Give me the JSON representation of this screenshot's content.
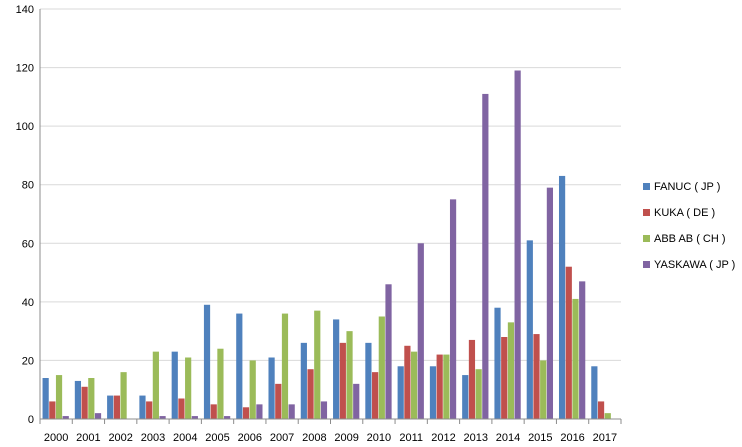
{
  "chart_data": {
    "type": "bar",
    "title": "",
    "xlabel": "",
    "ylabel": "",
    "ylim": [
      0,
      140
    ],
    "yticks": [
      0,
      20,
      40,
      60,
      80,
      100,
      120,
      140
    ],
    "grid": true,
    "legend_position": "right",
    "categories": [
      "2000",
      "2001",
      "2002",
      "2003",
      "2004",
      "2005",
      "2006",
      "2007",
      "2008",
      "2009",
      "2010",
      "2011",
      "2012",
      "2013",
      "2014",
      "2015",
      "2016",
      "2017"
    ],
    "series": [
      {
        "name": "FANUC ( JP )",
        "color": "#4F81BD",
        "values": [
          14,
          13,
          8,
          8,
          23,
          39,
          36,
          21,
          26,
          34,
          26,
          18,
          18,
          15,
          38,
          61,
          83,
          18
        ]
      },
      {
        "name": "KUKA ( DE )",
        "color": "#C0504D",
        "values": [
          6,
          11,
          8,
          6,
          7,
          5,
          4,
          12,
          17,
          26,
          16,
          25,
          22,
          27,
          28,
          29,
          52,
          6
        ]
      },
      {
        "name": "ABB AB ( CH )",
        "color": "#9BBB59",
        "values": [
          15,
          14,
          16,
          23,
          21,
          24,
          20,
          36,
          37,
          30,
          35,
          23,
          22,
          17,
          33,
          20,
          41,
          2
        ]
      },
      {
        "name": "YASKAWA ( JP )",
        "color": "#8064A2",
        "values": [
          1,
          2,
          0,
          1,
          1,
          1,
          5,
          5,
          6,
          12,
          46,
          60,
          75,
          111,
          119,
          79,
          47,
          0
        ]
      }
    ]
  }
}
